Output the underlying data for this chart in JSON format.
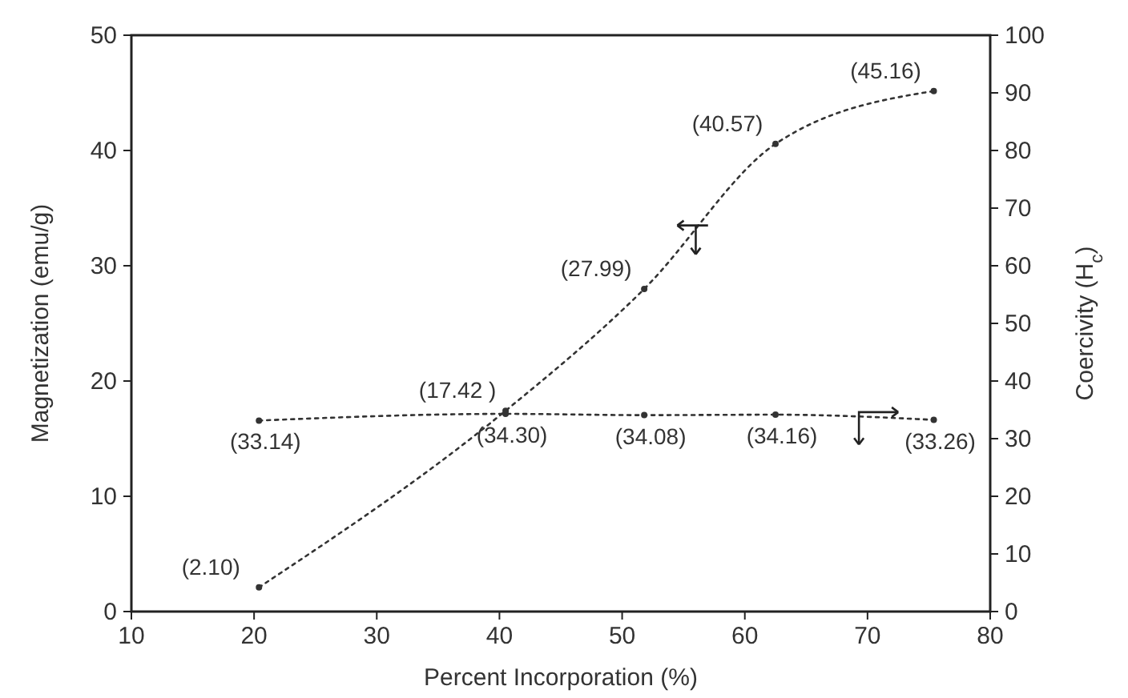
{
  "chart_data": {
    "type": "line",
    "xlabel": "Percent Incorporation (%)",
    "ylabel": "Magnetization (emu/g)",
    "y2label": "Coercivity (H$_{c}$)",
    "x": [
      20.4,
      40.5,
      51.8,
      62.5,
      75.4
    ],
    "series": [
      {
        "color": "#333333",
        "values": [
          2.1,
          17.42,
          27.99,
          40.57,
          45.16
        ],
        "value_labels": [
          "(2.10)",
          "(17.42 )",
          "(27.99)",
          "(40.57)",
          "(45.16)"
        ]
      },
      {
        "color": "#333333",
        "axis": "y2",
        "values": [
          33.14,
          34.3,
          34.08,
          34.16,
          33.26
        ],
        "value_labels": [
          "(33.14)",
          "(34.30)",
          "(34.08)",
          "(34.16)",
          "(33.26)"
        ]
      }
    ],
    "xlim": [
      10,
      80
    ],
    "xticks": [
      10,
      20,
      30,
      40,
      50,
      60,
      70,
      80
    ],
    "ylim": [
      0,
      50
    ],
    "yticks": [
      0,
      10,
      20,
      30,
      40,
      50
    ],
    "y2lim": [
      0,
      100
    ],
    "y2ticks": [
      0,
      10,
      20,
      30,
      40,
      50,
      60,
      70,
      80,
      90,
      100
    ],
    "marker": "circle",
    "line_style": "dotted",
    "grid": false
  }
}
